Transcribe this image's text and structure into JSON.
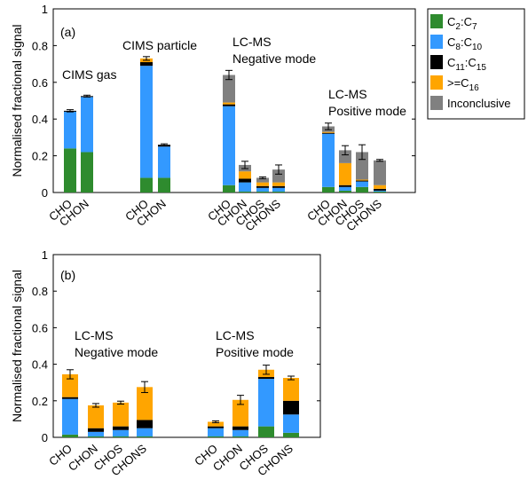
{
  "figure": {
    "ylabel": "Normalised fractional signal",
    "legend_placement": "right",
    "legend": [
      {
        "label": "C",
        "sub1": "2",
        "sep": ":C",
        "sub2": "7",
        "color": "#2e8b2e"
      },
      {
        "label": "C",
        "sub1": "8",
        "sep": ":C",
        "sub2": "10",
        "color": "#3399ff"
      },
      {
        "label": "C",
        "sub1": "11",
        "sep": ":C",
        "sub2": "15",
        "color": "#000000"
      },
      {
        "label": ">=C",
        "sub1": "16",
        "sep": "",
        "sub2": "",
        "color": "#ffa500"
      },
      {
        "label": "Inconclusive",
        "sub1": "",
        "sep": "",
        "sub2": "",
        "color": "#808080"
      }
    ]
  },
  "chart_data": [
    {
      "panel": "(a)",
      "type": "bar",
      "stacked": true,
      "ylim": [
        0,
        1
      ],
      "yticks": [
        "0",
        "0.2",
        "0.4",
        "0.6",
        "0.8",
        "1"
      ],
      "ylabel": "Normalised fractional signal",
      "groups": [
        {
          "label": "CIMS gas",
          "categories": [
            "CHO",
            "CHON"
          ]
        },
        {
          "label": "CIMS particle",
          "categories": [
            "CHO",
            "CHON"
          ]
        },
        {
          "label": "LC-MS\nNegative mode",
          "categories": [
            "CHO",
            "CHON",
            "CHOS",
            "CHONS"
          ]
        },
        {
          "label": "LC-MS\nPositive mode",
          "categories": [
            "CHO",
            "CHON",
            "CHOS",
            "CHONS"
          ]
        }
      ],
      "bars": [
        {
          "group": 0,
          "category": "CHO",
          "values": [
            0.24,
            0.2,
            0.005,
            0.0,
            0.0
          ],
          "error": 0.006
        },
        {
          "group": 0,
          "category": "CHON",
          "values": [
            0.22,
            0.3,
            0.005,
            0.0,
            0.0
          ],
          "error": 0.005
        },
        {
          "group": 1,
          "category": "CHO",
          "values": [
            0.08,
            0.61,
            0.02,
            0.02,
            0.0
          ],
          "error": 0.01
        },
        {
          "group": 1,
          "category": "CHON",
          "values": [
            0.08,
            0.17,
            0.01,
            0.0,
            0.0
          ],
          "error": 0.005
        },
        {
          "group": 2,
          "category": "CHO",
          "values": [
            0.04,
            0.43,
            0.01,
            0.01,
            0.15
          ],
          "error": 0.025
        },
        {
          "group": 2,
          "category": "CHON",
          "values": [
            0.005,
            0.05,
            0.02,
            0.04,
            0.035
          ],
          "error": 0.02
        },
        {
          "group": 2,
          "category": "CHOS",
          "values": [
            0.005,
            0.02,
            0.01,
            0.02,
            0.025
          ],
          "error": 0.005
        },
        {
          "group": 2,
          "category": "CHONS",
          "values": [
            0.005,
            0.02,
            0.01,
            0.02,
            0.07
          ],
          "error": 0.025
        },
        {
          "group": 3,
          "category": "CHO",
          "values": [
            0.03,
            0.29,
            0.005,
            0.005,
            0.03
          ],
          "error": 0.018
        },
        {
          "group": 3,
          "category": "CHON",
          "values": [
            0.01,
            0.02,
            0.01,
            0.12,
            0.07
          ],
          "error": 0.025
        },
        {
          "group": 3,
          "category": "CHOS",
          "values": [
            0.03,
            0.03,
            0.005,
            0.005,
            0.15
          ],
          "error": 0.04
        },
        {
          "group": 3,
          "category": "CHONS",
          "values": [
            0.005,
            0.005,
            0.01,
            0.02,
            0.135
          ],
          "error": 0.005
        }
      ]
    },
    {
      "panel": "(b)",
      "type": "bar",
      "stacked": true,
      "ylim": [
        0,
        1
      ],
      "yticks": [
        "0",
        "0.2",
        "0.4",
        "0.6",
        "0.8",
        "1"
      ],
      "ylabel": "Normalised fractional signal",
      "groups": [
        {
          "label": "LC-MS\nNegative mode",
          "categories": [
            "CHO",
            "CHON",
            "CHOS",
            "CHONS"
          ]
        },
        {
          "label": "LC-MS\nPositive mode",
          "categories": [
            "CHO",
            "CHON",
            "CHOS",
            "CHONS"
          ]
        }
      ],
      "bars": [
        {
          "group": 0,
          "category": "CHO",
          "values": [
            0.015,
            0.195,
            0.01,
            0.125,
            0.0
          ],
          "error": 0.025
        },
        {
          "group": 0,
          "category": "CHON",
          "values": [
            0.005,
            0.025,
            0.02,
            0.125,
            0.0
          ],
          "error": 0.01
        },
        {
          "group": 0,
          "category": "CHOS",
          "values": [
            0.005,
            0.035,
            0.02,
            0.13,
            0.0
          ],
          "error": 0.008
        },
        {
          "group": 0,
          "category": "CHONS",
          "values": [
            0.005,
            0.045,
            0.045,
            0.18,
            0.0
          ],
          "error": 0.03
        },
        {
          "group": 1,
          "category": "CHO",
          "values": [
            0.005,
            0.045,
            0.01,
            0.025,
            0.0
          ],
          "error": 0.005
        },
        {
          "group": 1,
          "category": "CHON",
          "values": [
            0.005,
            0.035,
            0.02,
            0.145,
            0.0
          ],
          "error": 0.025
        },
        {
          "group": 1,
          "category": "CHOS",
          "values": [
            0.06,
            0.26,
            0.01,
            0.04,
            0.0
          ],
          "error": 0.025
        },
        {
          "group": 1,
          "category": "CHONS",
          "values": [
            0.025,
            0.1,
            0.075,
            0.125,
            0.0
          ],
          "error": 0.01
        }
      ]
    }
  ]
}
